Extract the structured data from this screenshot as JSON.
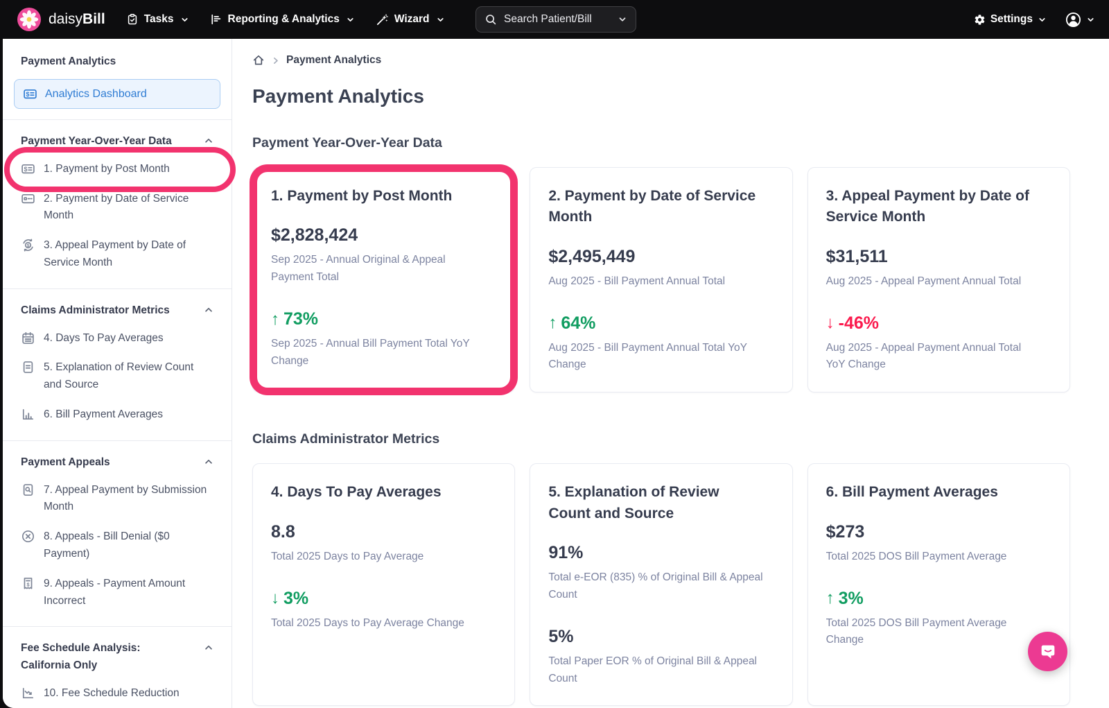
{
  "navbar": {
    "brand_daisy": "daisy",
    "brand_bill": "Bill",
    "menus": [
      {
        "label": "Tasks",
        "icon": "tasks-icon"
      },
      {
        "label": "Reporting & Analytics",
        "icon": "reporting-icon"
      },
      {
        "label": "Wizard",
        "icon": "wizard-icon"
      }
    ],
    "search": {
      "label": "Search Patient/Bill",
      "icon": "search-icon"
    },
    "settings": {
      "label": "Settings",
      "icon": "gear-icon"
    }
  },
  "sidebar": {
    "title": "Payment Analytics",
    "dashboard": {
      "label": "Analytics Dashboard",
      "icon": "bill-icon"
    },
    "sections": [
      {
        "heading": "Payment Year-Over-Year Data",
        "items": [
          {
            "label": "1. Payment by Post Month",
            "icon": "bill-icon",
            "annotated": true
          },
          {
            "label": "2. Payment by Date of Service Month",
            "icon": "card-icon"
          },
          {
            "label": "3. Appeal Payment by Date of Service Month",
            "icon": "appeal-payment-icon"
          }
        ]
      },
      {
        "heading": "Claims Administrator Metrics",
        "items": [
          {
            "label": "4. Days To Pay Averages",
            "icon": "calendar-icon"
          },
          {
            "label": "5. Explanation of Review Count and Source",
            "icon": "document-icon"
          },
          {
            "label": "6. Bill Payment Averages",
            "icon": "bar-chart-icon"
          }
        ]
      },
      {
        "heading": "Payment Appeals",
        "items": [
          {
            "label": "7. Appeal Payment by Submission Month",
            "icon": "file-search-icon"
          },
          {
            "label": "8. Appeals - Bill Denial ($0 Payment)",
            "icon": "x-circle-icon"
          },
          {
            "label": "9. Appeals - Payment Amount Incorrect",
            "icon": "receipt-icon"
          }
        ]
      },
      {
        "heading": "Fee Schedule Analysis: California Only",
        "items": [
          {
            "label": "10. Fee Schedule Reduction",
            "icon": "trend-icon"
          }
        ]
      }
    ]
  },
  "breadcrumb": {
    "home_icon": "home-icon",
    "page": "Payment Analytics"
  },
  "main": {
    "title": "Payment Analytics",
    "sections": [
      {
        "heading": "Payment Year-Over-Year Data",
        "cards": [
          {
            "title": "1. Payment by Post Month",
            "annotated": true,
            "metrics": [
              {
                "value": "$2,828,424",
                "label": "Sep 2025 - Annual Original & Appeal Payment Total"
              },
              {
                "value": "73%",
                "dir": "up",
                "color": "green",
                "label": "Sep 2025 - Annual Bill Payment Total YoY Change"
              }
            ]
          },
          {
            "title": "2. Payment by Date of Service Month",
            "metrics": [
              {
                "value": "$2,495,449",
                "label": "Aug 2025 - Bill Payment Annual Total"
              },
              {
                "value": "64%",
                "dir": "up",
                "color": "green",
                "label": "Aug 2025 - Bill Payment Annual Total YoY Change"
              }
            ]
          },
          {
            "title": "3. Appeal Payment by Date of Service Month",
            "metrics": [
              {
                "value": "$31,511",
                "label": "Aug 2025 - Appeal Payment Annual Total"
              },
              {
                "value": "-46%",
                "dir": "down",
                "color": "red",
                "label": "Aug 2025 - Appeal Payment Annual Total YoY Change"
              }
            ]
          }
        ]
      },
      {
        "heading": "Claims Administrator Metrics",
        "cards": [
          {
            "title": "4. Days To Pay Averages",
            "metrics": [
              {
                "value": "8.8",
                "label": "Total 2025 Days to Pay Average"
              },
              {
                "value": "3%",
                "dir": "down",
                "color": "green",
                "label": "Total 2025 Days to Pay Average Change"
              }
            ]
          },
          {
            "title": "5. Explanation of Review Count and Source",
            "metrics": [
              {
                "value": "91%",
                "label": "Total e-EOR (835) % of Original Bill & Appeal Count"
              },
              {
                "value": "5%",
                "label": "Total Paper EOR % of Original Bill & Appeal Count"
              }
            ]
          },
          {
            "title": "6. Bill Payment Averages",
            "metrics": [
              {
                "value": "$273",
                "label": "Total 2025 DOS Bill Payment Average"
              },
              {
                "value": "3%",
                "dir": "up",
                "color": "green",
                "label": "Total 2025 DOS Bill Payment Average Change"
              }
            ]
          }
        ]
      }
    ]
  },
  "chat": {
    "icon": "messenger-icon"
  },
  "colors": {
    "brand_pink": "#ee4c9b",
    "annotation_pink": "#f2336e",
    "chat_pink": "#ec3a92",
    "green": "#119d61",
    "red": "#fb1a4d",
    "selected_blue": "#2f7cd3",
    "navbar_black": "#0d0d0f"
  }
}
